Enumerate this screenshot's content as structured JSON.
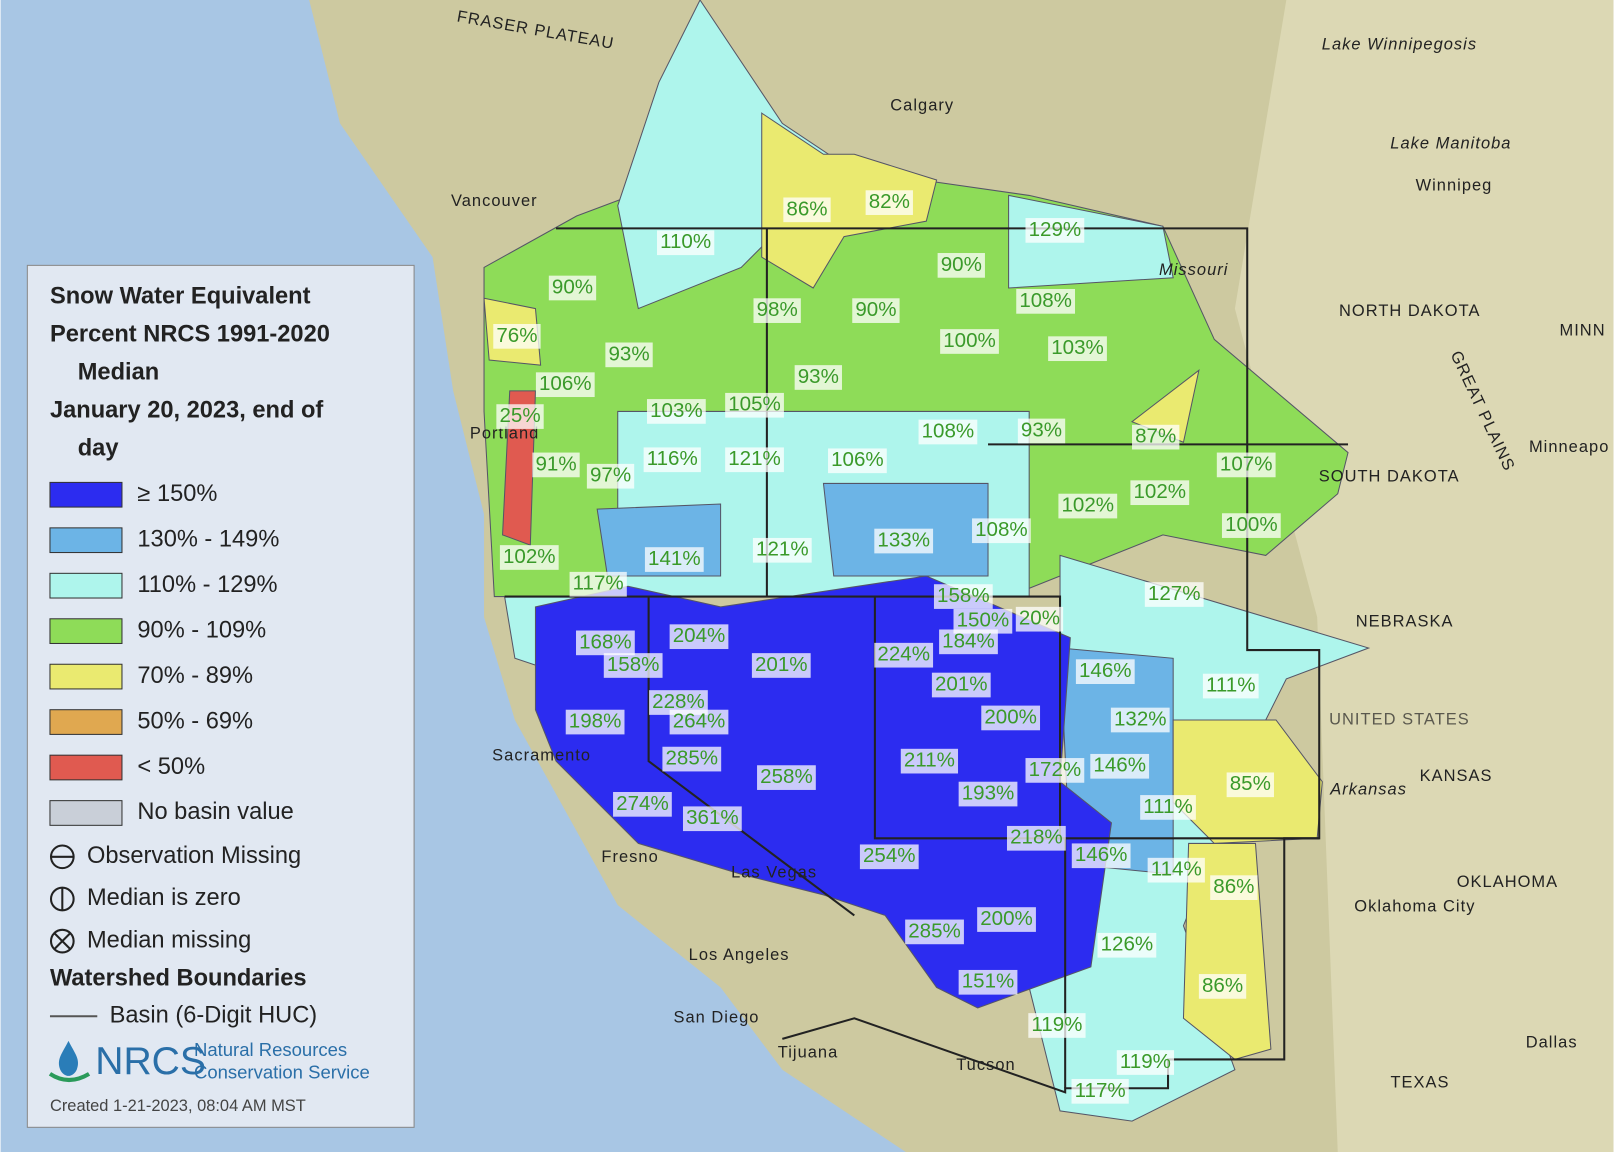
{
  "legend": {
    "title_lines": [
      "Snow Water Equivalent",
      "Percent NRCS 1991-2020",
      "Median",
      "January 20, 2023, end of",
      "day"
    ],
    "classes": [
      {
        "label": "≥ 150%",
        "color": "#2c2cf0"
      },
      {
        "label": "130% - 149%",
        "color": "#6cb4e6"
      },
      {
        "label": "110% - 129%",
        "color": "#aef5ec"
      },
      {
        "label": "90% - 109%",
        "color": "#8edc58"
      },
      {
        "label": "70% - 89%",
        "color": "#eaea70"
      },
      {
        "label": "50% - 69%",
        "color": "#e0a850"
      },
      {
        "label": "< 50%",
        "color": "#e05a50"
      },
      {
        "label": "No basin value",
        "color": "#c9cfd8"
      }
    ],
    "symbols": [
      "Observation Missing",
      "Median is zero",
      "Median missing"
    ],
    "boundaries_title": "Watershed Boundaries",
    "boundary_label": "Basin (6-Digit HUC)",
    "agency": [
      "NRCS",
      "Natural Resources",
      "Conservation Service"
    ],
    "created": "Created 1-21-2023, 08:04 AM MST"
  },
  "places": [
    "Calgary",
    "Vancouver",
    "Winnipeg",
    "Lake Winnipegosis",
    "Lake Manitoba",
    "NORTH DAKOTA",
    "SOUTH DAKOTA",
    "NEBRASKA",
    "KANSAS",
    "OKLAHOMA",
    "Oklahoma City",
    "TEXAS",
    "Dallas",
    "Tucson",
    "Tijuana",
    "San Diego",
    "Los Angeles",
    "Fresno",
    "Sacramento",
    "Las Vegas",
    "Portland",
    "UNITED STATES",
    "Missouri",
    "Arkansas",
    "FRASER PLATEAU",
    "GREAT PLAINS",
    "Minneapo",
    "MINN"
  ],
  "basin_labels": [
    "110%",
    "86%",
    "82%",
    "129%",
    "90%",
    "90%",
    "76%",
    "98%",
    "90%",
    "108%",
    "93%",
    "100%",
    "103%",
    "106%",
    "93%",
    "25%",
    "103%",
    "105%",
    "108%",
    "93%",
    "87%",
    "91%",
    "97%",
    "116%",
    "121%",
    "106%",
    "107%",
    "102%",
    "102%",
    "100%",
    "108%",
    "102%",
    "141%",
    "121%",
    "133%",
    "117%",
    "127%",
    "158%",
    "150%",
    "20%",
    "168%",
    "204%",
    "224%",
    "184%",
    "158%",
    "201%",
    "201%",
    "146%",
    "111%",
    "228%",
    "198%",
    "264%",
    "200%",
    "132%",
    "285%",
    "211%",
    "172%",
    "146%",
    "258%",
    "193%",
    "85%",
    "274%",
    "361%",
    "111%",
    "218%",
    "146%",
    "254%",
    "114%",
    "86%",
    "285%",
    "200%",
    "126%",
    "151%",
    "86%",
    "119%",
    "119%",
    "117%"
  ]
}
